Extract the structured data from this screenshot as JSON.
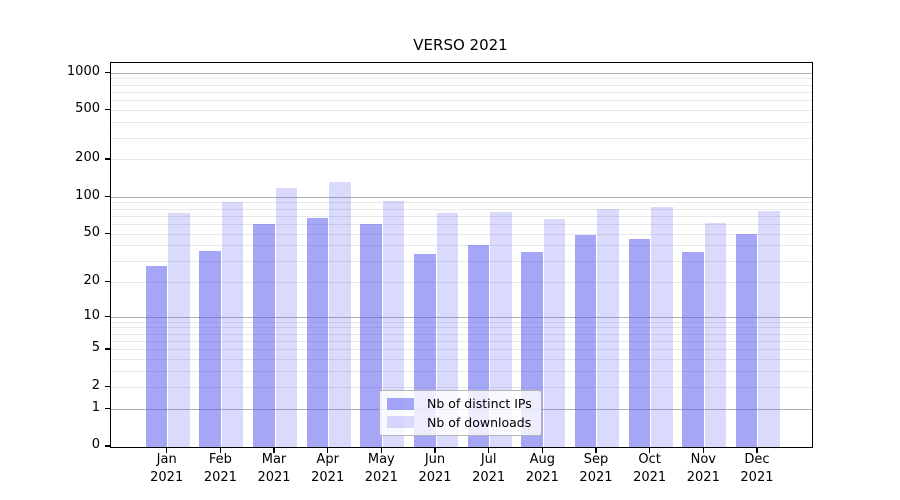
{
  "figure": {
    "title": "VERSO 2021",
    "background": "#ffffff"
  },
  "colors": {
    "ips_bar": "rgba(85,85,240,0.52)",
    "downloads_bar": "rgba(85,85,240,0.22)",
    "major_gridline": "#b0b0b0",
    "minor_gridline": "#e8e8e8",
    "axis_spine": "#000000",
    "legend_border": "#b5b5b5",
    "legend_background": "rgba(255,255,255,0.8)"
  },
  "legend": {
    "items": [
      {
        "label": "Nb of distinct IPs",
        "color_key": "ips_bar"
      },
      {
        "label": "Nb of downloads",
        "color_key": "downloads_bar"
      }
    ]
  },
  "x_axis": {
    "months": [
      "Jan",
      "Feb",
      "Mar",
      "Apr",
      "May",
      "Jun",
      "Jul",
      "Aug",
      "Sep",
      "Oct",
      "Nov",
      "Dec"
    ],
    "year_label": "2021"
  },
  "y_axis": {
    "tick_values": [
      0,
      1,
      2,
      5,
      10,
      20,
      50,
      100,
      200,
      500,
      1000
    ]
  },
  "chart_data": {
    "type": "bar",
    "title": "VERSO 2021",
    "categories": [
      "Jan 2021",
      "Feb 2021",
      "Mar 2021",
      "Apr 2021",
      "May 2021",
      "Jun 2021",
      "Jul 2021",
      "Aug 2021",
      "Sep 2021",
      "Oct 2021",
      "Nov 2021",
      "Dec 2021"
    ],
    "series": [
      {
        "name": "Nb of distinct IPs",
        "color_key": "ips_bar",
        "values": [
          27,
          36,
          60,
          67,
          60,
          34,
          40,
          35,
          49,
          45,
          35,
          50
        ]
      },
      {
        "name": "Nb of downloads",
        "color_key": "downloads_bar",
        "values": [
          74,
          91,
          118,
          132,
          92,
          74,
          75,
          66,
          79,
          83,
          61,
          76
        ]
      }
    ],
    "xlabel": "",
    "ylabel": "",
    "yscale": "symlog (pixel position proportional to log10(1+value))",
    "y_ticks": [
      0,
      1,
      2,
      5,
      10,
      20,
      50,
      100,
      200,
      500,
      1000
    ],
    "ylim": [
      0,
      1200
    ],
    "grid": true,
    "legend_position": "lower center, inside plot"
  }
}
